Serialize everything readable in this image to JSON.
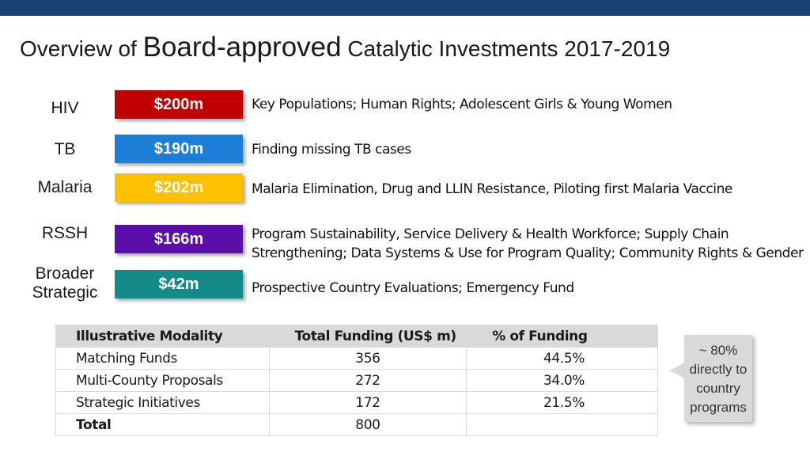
{
  "title": {
    "part1": "Overview of ",
    "part2": "Board-approved",
    "part3": " Catalytic Investments 2017-2019"
  },
  "rows": [
    {
      "label": "HIV",
      "amount": "$200m",
      "color": "#c00000",
      "description": "Key Populations; Human Rights; Adolescent Girls & Young Women"
    },
    {
      "label": "TB",
      "amount": "$190m",
      "color": "#1c7ed6",
      "description": "Finding missing TB cases"
    },
    {
      "label": "Malaria",
      "amount": "$202m",
      "color": "#ffc000",
      "description": "Malaria Elimination, Drug and LLIN Resistance, Piloting first Malaria Vaccine"
    },
    {
      "label": "RSSH",
      "amount": "$166m",
      "color": "#5b0fa8",
      "description_line1": "Program Sustainability, Service Delivery & Health Workforce; Supply Chain",
      "description_line2": "Strengthening; Data Systems & Use for Program Quality; Community Rights & Gender"
    },
    {
      "label_line1": "Broader",
      "label_line2": "Strategic",
      "amount": "$42m",
      "color": "#148a8a",
      "description": "Prospective Country Evaluations; Emergency Fund"
    }
  ],
  "table": {
    "headers": [
      "Illustrative Modality",
      "Total Funding (US$ m)",
      "% of Funding"
    ],
    "rows": [
      [
        "Matching Funds",
        "356",
        "44.5%"
      ],
      [
        "Multi-County Proposals",
        "272",
        "34.0%"
      ],
      [
        "Strategic Initiatives",
        "172",
        "21.5%"
      ],
      [
        "Total",
        "800",
        ""
      ]
    ]
  },
  "callout": {
    "line1": "~ 80%",
    "line2": "directly to",
    "line3": "country",
    "line4": "programs"
  }
}
